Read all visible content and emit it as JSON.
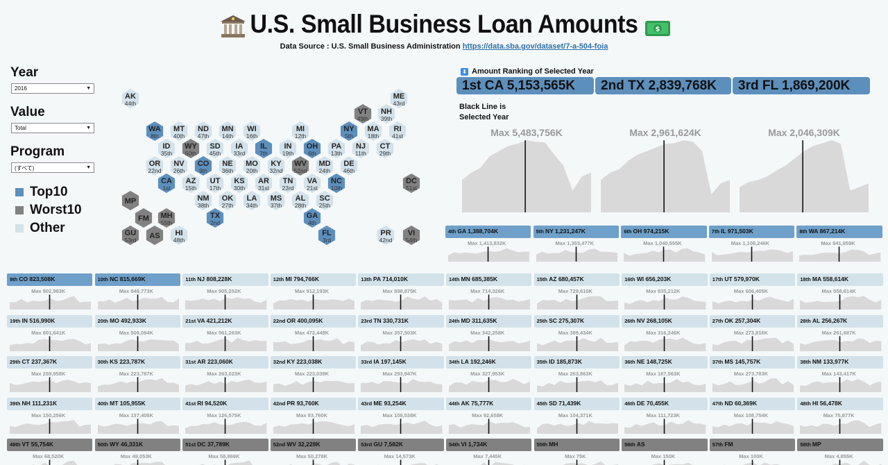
{
  "header": {
    "title": "U.S. Small Business Loan Amounts",
    "source_label": "Data Source : U.S. Small Business Administration",
    "source_link": "https://data.sba.gov/dataset/7-a-504-foia",
    "left_icon": "bank-icon",
    "right_icon": "money-icon"
  },
  "filters": {
    "year_label": "Year",
    "year_value": "2016",
    "value_label": "Value",
    "value_value": "Total",
    "program_label": "Program",
    "program_value": "(すべて)"
  },
  "legend": [
    {
      "label": "Top10",
      "color": "#5d8fbd"
    },
    {
      "label": "Worst10",
      "color": "#818181"
    },
    {
      "label": "Other",
      "color": "#d3e2ea"
    }
  ],
  "colors": {
    "top": "#5d8fbd",
    "top_light": "#6fa0ca",
    "worst": "#818181",
    "other": "#d3e2ea",
    "area": "#d9d9d9",
    "bg": "#f4f8f9"
  },
  "map_states": [
    {
      "code": "AK",
      "rank": "44th"
    },
    {
      "code": "ME",
      "rank": "43rd"
    },
    {
      "code": "VT",
      "rank": "49th"
    },
    {
      "code": "NH",
      "rank": "39th"
    },
    {
      "code": "WA",
      "rank": "8th"
    },
    {
      "code": "MT",
      "rank": "40th"
    },
    {
      "code": "ND",
      "rank": "47th"
    },
    {
      "code": "MN",
      "rank": "14th"
    },
    {
      "code": "WI",
      "rank": "16th"
    },
    {
      "code": "MI",
      "rank": "12th"
    },
    {
      "code": "NY",
      "rank": "5th"
    },
    {
      "code": "MA",
      "rank": "18th"
    },
    {
      "code": "RI",
      "rank": "41st"
    },
    {
      "code": "ID",
      "rank": "35th"
    },
    {
      "code": "WY",
      "rank": "50th"
    },
    {
      "code": "SD",
      "rank": "45th"
    },
    {
      "code": "IA",
      "rank": "33rd"
    },
    {
      "code": "IL",
      "rank": "7th"
    },
    {
      "code": "IN",
      "rank": "19th"
    },
    {
      "code": "OH",
      "rank": "6th"
    },
    {
      "code": "PA",
      "rank": "13th"
    },
    {
      "code": "NJ",
      "rank": "11th"
    },
    {
      "code": "CT",
      "rank": "29th"
    },
    {
      "code": "OR",
      "rank": "22nd"
    },
    {
      "code": "NV",
      "rank": "26th"
    },
    {
      "code": "CO",
      "rank": "9th"
    },
    {
      "code": "NE",
      "rank": "36th"
    },
    {
      "code": "MO",
      "rank": "20th"
    },
    {
      "code": "KY",
      "rank": "32nd"
    },
    {
      "code": "WV",
      "rank": "52nd"
    },
    {
      "code": "MD",
      "rank": "24th"
    },
    {
      "code": "DE",
      "rank": "46th"
    },
    {
      "code": "CA",
      "rank": "1st"
    },
    {
      "code": "AZ",
      "rank": "15th"
    },
    {
      "code": "UT",
      "rank": "17th"
    },
    {
      "code": "KS",
      "rank": "30th"
    },
    {
      "code": "AR",
      "rank": "31st"
    },
    {
      "code": "TN",
      "rank": "23rd"
    },
    {
      "code": "VA",
      "rank": "21st"
    },
    {
      "code": "NC",
      "rank": "10th"
    },
    {
      "code": "DC",
      "rank": "51st"
    },
    {
      "code": "NM",
      "rank": "38th"
    },
    {
      "code": "OK",
      "rank": "27th"
    },
    {
      "code": "LA",
      "rank": "34th"
    },
    {
      "code": "MS",
      "rank": "37th"
    },
    {
      "code": "AL",
      "rank": "28th"
    },
    {
      "code": "SC",
      "rank": "25th"
    },
    {
      "code": "TX",
      "rank": "2nd"
    },
    {
      "code": "GA",
      "rank": "4th"
    },
    {
      "code": "FL",
      "rank": "3rd"
    },
    {
      "code": "MP",
      "rank": ""
    },
    {
      "code": "FM",
      "rank": ""
    },
    {
      "code": "MH",
      "rank": "55th"
    },
    {
      "code": "GU",
      "rank": "53rd"
    },
    {
      "code": "AS",
      "rank": ""
    },
    {
      "code": "HI",
      "rank": "48th"
    },
    {
      "code": "PR",
      "rank": "42nd"
    },
    {
      "code": "VI",
      "rank": "54th"
    }
  ],
  "ranking_header": "Amount Ranking of Selected Year",
  "black_line_note": [
    "Black Line is",
    "Selected Year"
  ],
  "top3": [
    {
      "rank": "1st",
      "state": "CA",
      "amount": "5,153,565K",
      "max": "Max 5,483,756K",
      "series": [
        0.45,
        0.55,
        0.62,
        0.78,
        0.85,
        0.92,
        0.95,
        1.0,
        0.98,
        0.97,
        0.8,
        0.65,
        0.3,
        0.5,
        0.55
      ]
    },
    {
      "rank": "2nd",
      "state": "TX",
      "amount": "2,839,768K",
      "max": "Max 2,961,624K",
      "series": [
        0.45,
        0.55,
        0.6,
        0.72,
        0.8,
        0.85,
        0.9,
        0.95,
        0.96,
        1.0,
        0.98,
        0.85,
        0.25,
        0.4,
        0.45
      ]
    },
    {
      "rank": "3rd",
      "state": "FL",
      "amount": "1,869,200K",
      "max": "Max 2,046,309K",
      "series": [
        0.35,
        0.42,
        0.45,
        0.5,
        0.58,
        0.65,
        0.75,
        0.85,
        0.92,
        0.96,
        1.0,
        0.95,
        0.3,
        0.35,
        0.4
      ]
    }
  ],
  "grid": [
    {
      "rank": "4th",
      "state": "GA",
      "amount": "1,388,704K",
      "max": "Max 1,413,832K"
    },
    {
      "rank": "5th",
      "state": "NY",
      "amount": "1,231,247K",
      "max": "Max 1,353,477K"
    },
    {
      "rank": "6th",
      "state": "OH",
      "amount": "974,215K",
      "max": "Max 1,040,555K"
    },
    {
      "rank": "7th",
      "state": "IL",
      "amount": "971,503K",
      "max": "Max 1,106,246K"
    },
    {
      "rank": "8th",
      "state": "WA",
      "amount": "867,214K",
      "max": "Max 941,959K"
    },
    {
      "rank": "9th",
      "state": "CO",
      "amount": "823,508K",
      "max": "Max 902,983K"
    },
    {
      "rank": "10th",
      "state": "NC",
      "amount": "815,669K",
      "max": "Max 848,773K"
    },
    {
      "rank": "11th",
      "state": "NJ",
      "amount": "808,228K",
      "max": "Max 905,252K"
    },
    {
      "rank": "12th",
      "state": "MI",
      "amount": "794,766K",
      "max": "Max 912,193K"
    },
    {
      "rank": "13th",
      "state": "PA",
      "amount": "714,010K",
      "max": "Max 898,875K"
    },
    {
      "rank": "14th",
      "state": "MN",
      "amount": "685,385K",
      "max": "Max 714,326K"
    },
    {
      "rank": "15th",
      "state": "AZ",
      "amount": "680,457K",
      "max": "Max 729,610K"
    },
    {
      "rank": "16th",
      "state": "WI",
      "amount": "656,203K",
      "max": "Max 835,212K"
    },
    {
      "rank": "17th",
      "state": "UT",
      "amount": "579,970K",
      "max": "Max 606,405K"
    },
    {
      "rank": "18th",
      "state": "MA",
      "amount": "558,614K",
      "max": "Max 558,614K"
    },
    {
      "rank": "19th",
      "state": "IN",
      "amount": "516,990K",
      "max": "Max 601,641K"
    },
    {
      "rank": "20th",
      "state": "MO",
      "amount": "492,933K",
      "max": "Max 506,084K"
    },
    {
      "rank": "21st",
      "state": "VA",
      "amount": "421,212K",
      "max": "Max 561,263K"
    },
    {
      "rank": "22nd",
      "state": "OR",
      "amount": "400,095K",
      "max": "Max 472,448K"
    },
    {
      "rank": "23rd",
      "state": "TN",
      "amount": "330,731K",
      "max": "Max 357,503K"
    },
    {
      "rank": "24th",
      "state": "MD",
      "amount": "311,635K",
      "max": "Max 342,258K"
    },
    {
      "rank": "25th",
      "state": "SC",
      "amount": "275,307K",
      "max": "Max 389,434K"
    },
    {
      "rank": "26th",
      "state": "NV",
      "amount": "268,105K",
      "max": "Max 316,246K"
    },
    {
      "rank": "27th",
      "state": "OK",
      "amount": "257,304K",
      "max": "Max 273,816K"
    },
    {
      "rank": "28th",
      "state": "AL",
      "amount": "256,267K",
      "max": "Max 261,687K"
    },
    {
      "rank": "29th",
      "state": "CT",
      "amount": "237,367K",
      "max": "Max 259,958K"
    },
    {
      "rank": "30th",
      "state": "KS",
      "amount": "223,787K",
      "max": "Max 223,787K"
    },
    {
      "rank": "31st",
      "state": "AR",
      "amount": "223,060K",
      "max": "Max 263,023K"
    },
    {
      "rank": "32nd",
      "state": "KY",
      "amount": "223,038K",
      "max": "Max 223,038K"
    },
    {
      "rank": "33rd",
      "state": "IA",
      "amount": "197,145K",
      "max": "Max 293,947K"
    },
    {
      "rank": "34th",
      "state": "LA",
      "amount": "192,246K",
      "max": "Max 327,953K"
    },
    {
      "rank": "35th",
      "state": "ID",
      "amount": "185,873K",
      "max": "Max 263,863K"
    },
    {
      "rank": "36th",
      "state": "NE",
      "amount": "148,725K",
      "max": "Max 167,563K"
    },
    {
      "rank": "37th",
      "state": "MS",
      "amount": "145,757K",
      "max": "Max 273,783K"
    },
    {
      "rank": "38th",
      "state": "NM",
      "amount": "133,977K",
      "max": "Max 143,417K"
    },
    {
      "rank": "39th",
      "state": "NH",
      "amount": "111,231K",
      "max": "Max 150,256K"
    },
    {
      "rank": "40th",
      "state": "MT",
      "amount": "105,955K",
      "max": "Max 137,408K"
    },
    {
      "rank": "41st",
      "state": "RI",
      "amount": "94,520K",
      "max": "Max 126,575K"
    },
    {
      "rank": "42nd",
      "state": "PR",
      "amount": "93,760K",
      "max": "Max 93,760K"
    },
    {
      "rank": "43rd",
      "state": "ME",
      "amount": "93,254K",
      "max": "Max 108,538K"
    },
    {
      "rank": "44th",
      "state": "AK",
      "amount": "75,777K",
      "max": "Max 92,658K"
    },
    {
      "rank": "45th",
      "state": "SD",
      "amount": "71,439K",
      "max": "Max 104,371K"
    },
    {
      "rank": "46th",
      "state": "DE",
      "amount": "70,455K",
      "max": "Max 111,723K"
    },
    {
      "rank": "47th",
      "state": "ND",
      "amount": "60,369K",
      "max": "Max 108,754K"
    },
    {
      "rank": "48th",
      "state": "HI",
      "amount": "56,478K",
      "max": "Max 75,877K"
    },
    {
      "rank": "49th",
      "state": "VT",
      "amount": "55,754K",
      "max": "Max 68,520K"
    },
    {
      "rank": "50th",
      "state": "WY",
      "amount": "46,331K",
      "max": "Max 49,053K"
    },
    {
      "rank": "51st",
      "state": "DC",
      "amount": "37,789K",
      "max": "Max 58,869K"
    },
    {
      "rank": "52nd",
      "state": "WV",
      "amount": "32,228K",
      "max": "Max 50,278K"
    },
    {
      "rank": "53rd",
      "state": "GU",
      "amount": "7,582K",
      "max": "Max 14,573K"
    },
    {
      "rank": "54th",
      "state": "VI",
      "amount": "1,734K",
      "max": "Max 7,445K"
    },
    {
      "rank": "55th",
      "state": "MH",
      "amount": "",
      "max": "Max 75K"
    },
    {
      "rank": "56th",
      "state": "AS",
      "amount": "",
      "max": "Max 150K"
    },
    {
      "rank": "57th",
      "state": "FM",
      "amount": "",
      "max": "Max 100K"
    },
    {
      "rank": "58th",
      "state": "MP",
      "amount": "",
      "max": "Max 4,855K"
    }
  ]
}
